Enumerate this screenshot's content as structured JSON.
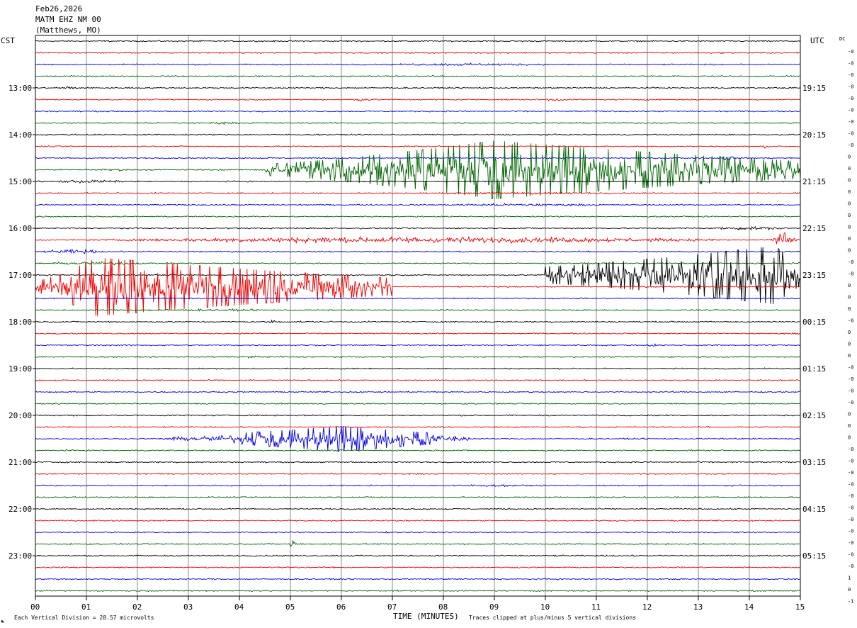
{
  "header": {
    "date": "Feb26,2026",
    "station": "MATM EHZ NM 00",
    "location": "(Matthews, MO)"
  },
  "left_timezone": "CST",
  "right_timezone": "UTC",
  "dc_label": "DC",
  "footer": {
    "scale_note": "Each Vertical Division =   28.57 microvolts",
    "xlabel": "TIME (MINUTES)",
    "clip_note": "Traces clipped at plus/minus 5 vertical divisions",
    "corner_mark": "◣"
  },
  "colors": {
    "black": "#000000",
    "red": "#ee0000",
    "blue": "#0000dd",
    "green": "#006400",
    "grid": "#888888"
  },
  "chart_data": {
    "type": "line",
    "title": "",
    "xlabel": "TIME (MINUTES)",
    "ylabel": "",
    "xlim": [
      0,
      15
    ],
    "x_ticks": [
      "00",
      "01",
      "02",
      "03",
      "04",
      "05",
      "06",
      "07",
      "08",
      "09",
      "10",
      "11",
      "12",
      "13",
      "14",
      "15"
    ],
    "minutes_per_line": 15,
    "trace_count": 48,
    "color_cycle": [
      "black",
      "red",
      "blue",
      "green"
    ],
    "left_time_labels": [
      "13:00",
      "14:00",
      "15:00",
      "16:00",
      "17:00",
      "18:00",
      "19:00",
      "20:00",
      "21:00",
      "22:00",
      "23:00"
    ],
    "right_time_labels": [
      "19:15",
      "20:15",
      "21:15",
      "22:15",
      "23:15",
      "00:15",
      "01:15",
      "02:15",
      "03:15",
      "04:15",
      "05:15"
    ],
    "hour_label_first_trace": 4,
    "dc_offsets": [
      "-0",
      "-0",
      "-0",
      "-0",
      "-0",
      "-0",
      "-0",
      "-0",
      "-0",
      "0",
      "0",
      "0",
      "0",
      "0",
      "0",
      "0",
      "0",
      "0",
      "-0",
      "-0",
      "0",
      "0",
      "0",
      "-6",
      "0",
      "0",
      "0",
      "-0",
      "-0",
      "-0",
      "-0",
      "0",
      "0",
      "0",
      "-0",
      "-0",
      "-0",
      "-0",
      "-0",
      "-0",
      "-0",
      "-0",
      "-0",
      "-0",
      "-0",
      "1",
      "0",
      "-1"
    ],
    "clip_divisions": 5,
    "microvolts_per_division": 28.57,
    "base_amplitude_divisions": 0.15,
    "events": [
      {
        "trace": 2,
        "start_min": 6.0,
        "end_min": 11.0,
        "amp": 0.3
      },
      {
        "trace": 4,
        "start_min": 0.3,
        "end_min": 1.0,
        "amp": 0.4
      },
      {
        "trace": 4,
        "start_min": 1.7,
        "end_min": 2.1,
        "amp": 0.25
      },
      {
        "trace": 5,
        "start_min": 6.0,
        "end_min": 6.8,
        "amp": 0.35
      },
      {
        "trace": 5,
        "start_min": 9.9,
        "end_min": 10.5,
        "amp": 0.4
      },
      {
        "trace": 7,
        "start_min": 3.3,
        "end_min": 4.0,
        "amp": 0.3
      },
      {
        "trace": 9,
        "start_min": 14.3,
        "end_min": 14.4,
        "amp": 0.4
      },
      {
        "trace": 10,
        "start_min": 13.5,
        "end_min": 13.7,
        "amp": 0.5
      },
      {
        "trace": 11,
        "start_min": 1.0,
        "end_min": 2.0,
        "amp": 0.3
      },
      {
        "trace": 11,
        "start_min": 4.5,
        "end_min": 15.0,
        "amp": 1.0,
        "peak_min": 9.0,
        "peak_amp": 5.0
      },
      {
        "trace": 12,
        "start_min": 0.0,
        "end_min": 2.0,
        "amp": 0.4
      },
      {
        "trace": 13,
        "start_min": 7.0,
        "end_min": 12.5,
        "amp": 0.3
      },
      {
        "trace": 14,
        "start_min": 7.0,
        "end_min": 12.0,
        "amp": 0.3
      },
      {
        "trace": 16,
        "start_min": 13.0,
        "end_min": 15.0,
        "amp": 0.4
      },
      {
        "trace": 17,
        "start_min": 0.0,
        "end_min": 15.0,
        "amp": 0.7
      },
      {
        "trace": 17,
        "start_min": 14.4,
        "end_min": 15.0,
        "amp": 1.2
      },
      {
        "trace": 18,
        "start_min": 0.0,
        "end_min": 1.5,
        "amp": 0.5
      },
      {
        "trace": 19,
        "start_min": 0.0,
        "end_min": 2.5,
        "amp": 0.4
      },
      {
        "trace": 20,
        "start_min": 10.0,
        "end_min": 15.0,
        "amp": 1.5,
        "peak_min": 14.5,
        "peak_amp": 5.0
      },
      {
        "trace": 21,
        "start_min": 0.0,
        "end_min": 7.0,
        "amp": 1.0,
        "peak_min": 1.2,
        "peak_amp": 5.0
      },
      {
        "trace": 23,
        "start_min": 0.0,
        "end_min": 6.0,
        "amp": 0.25
      },
      {
        "trace": 24,
        "start_min": 4.5,
        "end_min": 4.8,
        "amp": 0.4
      },
      {
        "trace": 26,
        "start_min": 12.0,
        "end_min": 12.2,
        "amp": 0.3
      },
      {
        "trace": 27,
        "start_min": 3.5,
        "end_min": 5.5,
        "amp": 0.25
      },
      {
        "trace": 34,
        "start_min": 2.5,
        "end_min": 8.5,
        "amp": 0.4,
        "peak_min": 6.0,
        "peak_amp": 2.2
      },
      {
        "trace": 38,
        "start_min": 7.0,
        "end_min": 10.5,
        "amp": 0.25
      },
      {
        "trace": 43,
        "start_min": 5.0,
        "end_min": 5.1,
        "amp": 1.0
      }
    ]
  }
}
